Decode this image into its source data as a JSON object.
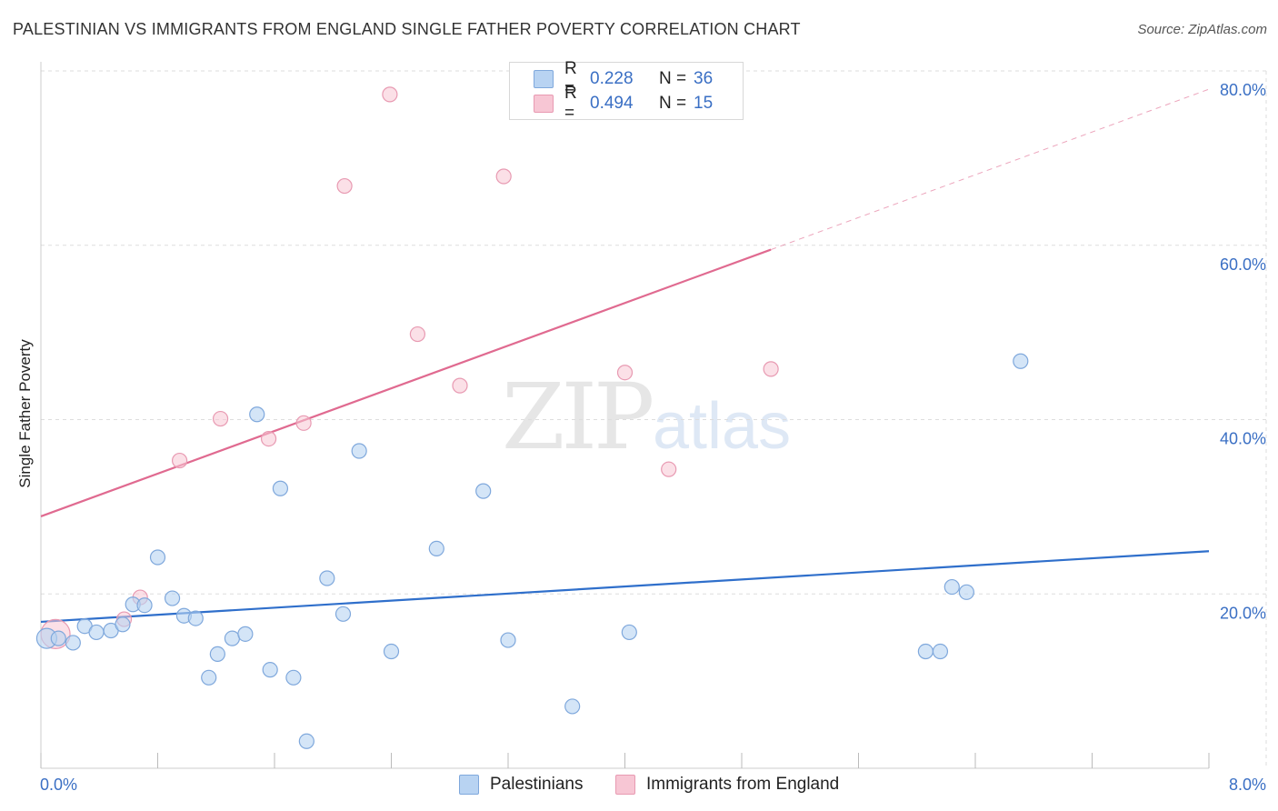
{
  "header": {
    "title": "PALESTINIAN VS IMMIGRANTS FROM ENGLAND SINGLE FATHER POVERTY CORRELATION CHART",
    "source": "Source: ZipAtlas.com"
  },
  "watermark": {
    "zip": "ZIP",
    "atlas": "atlas"
  },
  "legend": {
    "series": [
      {
        "r_label": "R =",
        "r_value": "0.228",
        "n_label": "N =",
        "n_value": "36"
      },
      {
        "r_label": "R =",
        "r_value": "0.494",
        "n_label": "N =",
        "n_value": "15"
      }
    ],
    "bottom": [
      "Palestinians",
      "Immigrants from England"
    ]
  },
  "colors": {
    "blue_fill": "#b8d3f2",
    "blue_stroke": "#7fa8dc",
    "blue_line": "#2f6fcb",
    "pink_fill": "#f7c6d4",
    "pink_stroke": "#e89ab2",
    "pink_line": "#e06a90",
    "tick_text": "#3a6fc4",
    "grid": "#dddddd"
  },
  "chart_data": {
    "type": "scatter",
    "title": "PALESTINIAN VS IMMIGRANTS FROM ENGLAND SINGLE FATHER POVERTY CORRELATION CHART",
    "xlabel": "",
    "ylabel": "Single Father Poverty",
    "xlim": [
      0,
      8
    ],
    "ylim": [
      0,
      80
    ],
    "x_tick_labels": [
      "0.0%",
      "8.0%"
    ],
    "y_ticks": [
      20,
      40,
      60,
      80
    ],
    "y_tick_labels": [
      "20.0%",
      "40.0%",
      "60.0%",
      "80.0%"
    ],
    "grid": true,
    "series": [
      {
        "name": "Palestinians",
        "r": 0.228,
        "n": 36,
        "points": [
          [
            0.04,
            14.9
          ],
          [
            0.12,
            14.9
          ],
          [
            0.22,
            14.4
          ],
          [
            0.3,
            16.3
          ],
          [
            0.38,
            15.6
          ],
          [
            0.48,
            15.8
          ],
          [
            0.56,
            16.5
          ],
          [
            0.63,
            18.8
          ],
          [
            0.71,
            18.7
          ],
          [
            0.8,
            24.2
          ],
          [
            0.9,
            19.5
          ],
          [
            0.98,
            17.5
          ],
          [
            1.06,
            17.2
          ],
          [
            1.15,
            10.4
          ],
          [
            1.21,
            13.1
          ],
          [
            1.31,
            14.9
          ],
          [
            1.4,
            15.4
          ],
          [
            1.48,
            40.6
          ],
          [
            1.57,
            11.3
          ],
          [
            1.64,
            32.1
          ],
          [
            1.73,
            10.4
          ],
          [
            1.82,
            3.1
          ],
          [
            1.96,
            21.8
          ],
          [
            2.07,
            17.7
          ],
          [
            2.18,
            36.4
          ],
          [
            2.4,
            13.4
          ],
          [
            2.71,
            25.2
          ],
          [
            3.03,
            31.8
          ],
          [
            3.2,
            14.7
          ],
          [
            3.64,
            7.1
          ],
          [
            4.03,
            15.6
          ],
          [
            6.06,
            13.4
          ],
          [
            6.16,
            13.4
          ],
          [
            6.24,
            20.8
          ],
          [
            6.34,
            20.2
          ],
          [
            6.71,
            46.7
          ]
        ],
        "trend": {
          "x": [
            0,
            8
          ],
          "y": [
            16.8,
            24.9
          ]
        }
      },
      {
        "name": "Immigrants from England",
        "r": 0.494,
        "n": 15,
        "points": [
          [
            0.1,
            15.4
          ],
          [
            0.57,
            17.1
          ],
          [
            0.68,
            19.6
          ],
          [
            0.95,
            35.3
          ],
          [
            1.23,
            40.1
          ],
          [
            1.56,
            37.8
          ],
          [
            1.8,
            39.6
          ],
          [
            2.08,
            66.8
          ],
          [
            2.39,
            77.3
          ],
          [
            2.58,
            49.8
          ],
          [
            2.87,
            43.9
          ],
          [
            3.17,
            67.9
          ],
          [
            4.0,
            45.4
          ],
          [
            4.3,
            34.3
          ],
          [
            5.0,
            45.8
          ]
        ],
        "trend": {
          "x": [
            0,
            5.0
          ],
          "y": [
            28.9,
            59.5
          ]
        },
        "trend_extrapolated": {
          "x": [
            5.0,
            8
          ],
          "y": [
            59.5,
            77.9
          ]
        }
      }
    ]
  }
}
